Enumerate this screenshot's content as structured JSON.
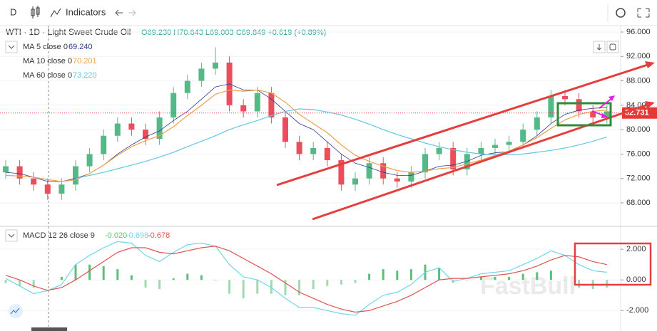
{
  "toolbar": {
    "interval": "D",
    "indicators": "Indicators"
  },
  "chart_data": [
    {
      "type": "candlestick",
      "title": "WTI · 1D · Light Sweet Crude Oil",
      "subtitle": "O69.230 H70.643 L69.003 C69.849 +0.619 (+0.89%)",
      "open": [
        73,
        74,
        72,
        71,
        69.5,
        71,
        74,
        76,
        79,
        81,
        80,
        78.5,
        82,
        86,
        88,
        90,
        91,
        84,
        83,
        86,
        82,
        78,
        76,
        77,
        75,
        71,
        72,
        74.5,
        72,
        71.5,
        73,
        76,
        77,
        73.5,
        76,
        77,
        77.5,
        78,
        80,
        82,
        85.5,
        85,
        83,
        82
      ],
      "high": [
        75,
        75,
        73,
        72,
        72,
        75,
        77,
        80,
        82,
        82,
        81,
        83,
        87,
        89,
        91,
        93.5,
        92,
        85,
        87,
        87,
        83,
        79,
        78,
        78,
        76,
        73,
        75.5,
        75.5,
        73,
        74,
        77,
        78,
        78,
        77,
        78,
        78.5,
        79,
        81,
        83,
        86.5,
        86.5,
        86,
        84,
        84
      ],
      "low": [
        72,
        71,
        70,
        68.5,
        68.5,
        70,
        73,
        75,
        78,
        79,
        77.5,
        77.5,
        81,
        85,
        87,
        89,
        83,
        82,
        82,
        81,
        77,
        75,
        75,
        74,
        70,
        70,
        71,
        71,
        70.5,
        70.5,
        72,
        75,
        72.5,
        72.5,
        75,
        76,
        76.5,
        77,
        79,
        81,
        84,
        82,
        81,
        81
      ],
      "close": [
        74,
        72,
        71,
        69.5,
        71,
        74,
        76,
        79,
        81,
        80,
        78.5,
        82,
        86,
        88,
        90,
        91,
        84,
        83,
        86,
        82,
        78,
        76,
        77,
        75,
        71,
        72,
        74.5,
        72,
        71.5,
        73,
        76,
        77,
        73.5,
        76,
        77,
        77.5,
        78,
        80,
        82,
        85.5,
        85,
        83,
        82,
        83
      ],
      "up_color": "#53b987",
      "down_color": "#eb4d5c",
      "series": [
        {
          "name": "MA 5 close 0",
          "legend_value": "69.240",
          "color": "#2b3a8f",
          "values": [
            73,
            72.8,
            72.2,
            71.5,
            71.5,
            72,
            72.8,
            74.2,
            76,
            77.5,
            78.8,
            79.8,
            81.5,
            83,
            85,
            87,
            87.5,
            86.5,
            86.5,
            85,
            83,
            81,
            80,
            78,
            76,
            74.5,
            73.8,
            73,
            72.5,
            72.5,
            73.2,
            74,
            74.2,
            74.8,
            75.8,
            76.2,
            76.4,
            77.5,
            79,
            81,
            82.5,
            83.2,
            83.5,
            83.6
          ]
        },
        {
          "name": "MA 10 close 0",
          "legend_value": "70.201",
          "color": "#f0a04b",
          "values": [
            72.5,
            72.4,
            72.2,
            71.8,
            71.5,
            71.8,
            72.8,
            74.2,
            75.8,
            77.2,
            78.2,
            79,
            80.5,
            82.3,
            84,
            85.8,
            86.5,
            86.3,
            86.5,
            86,
            84.5,
            82.5,
            81,
            79.5,
            77.5,
            75.8,
            74.8,
            74,
            73.3,
            73,
            73.2,
            73.6,
            73.8,
            74.4,
            75,
            75.8,
            76.5,
            77.5,
            78.7,
            80.2,
            81.6,
            82.5,
            83,
            83.2
          ]
        },
        {
          "name": "MA 60 close 0",
          "legend_value": "73.220",
          "color": "#5fc9e0",
          "values": [
            null,
            null,
            null,
            null,
            null,
            72,
            72.5,
            73,
            73.6,
            74.2,
            74.8,
            75.5,
            76.3,
            77.2,
            78.1,
            79,
            80,
            80.8,
            81.5,
            82.3,
            83,
            83.4,
            83.3,
            82.9,
            82.4,
            81.7,
            80.9,
            80,
            79.2,
            78.5,
            77.8,
            77.2,
            76.7,
            76.3,
            76,
            75.9,
            75.9,
            76,
            76.3,
            76.6,
            77,
            77.5,
            78.1,
            78.8
          ]
        }
      ],
      "last_price": {
        "value": 82.731,
        "label": "82.731",
        "color": "#e53935"
      },
      "ylim": [
        64.15,
        97.05
      ],
      "yticks": [
        {
          "value": 68,
          "label": "68.000"
        },
        {
          "value": 72,
          "label": "72.000"
        },
        {
          "value": 76,
          "label": "76.000"
        },
        {
          "value": 80,
          "label": "80.000"
        },
        {
          "value": 84,
          "label": "84.000"
        },
        {
          "value": 88,
          "label": "88.000"
        },
        {
          "value": 92,
          "label": "92.000"
        },
        {
          "value": 96,
          "label": "96.000"
        }
      ],
      "watermark": "FastBull"
    },
    {
      "type": "macd",
      "title": "MACD 12 26 close 9",
      "histogram": {
        "legend_value": "-0.020",
        "color": "#5cbf77",
        "values": [
          -0.2,
          -0.4,
          -0.5,
          -0.02,
          0.2,
          1.0,
          1.0,
          0.9,
          0.7,
          0.3,
          -0.5,
          -0.6,
          0.1,
          0.4,
          0.3,
          0.0,
          -0.9,
          -1.2,
          -0.9,
          -0.9,
          -1.0,
          -1.0,
          -0.6,
          -0.4,
          -0.3,
          -0.2,
          0.4,
          0.7,
          0.6,
          0.7,
          1.0,
          0.8,
          -0.2,
          0.0,
          0.2,
          0.2,
          0.2,
          0.4,
          0.5,
          0.6,
          0.0,
          -0.5,
          -0.6,
          -0.5
        ]
      },
      "macd": {
        "legend_value": "-0.698",
        "color": "#6fd6ec",
        "values": [
          0.1,
          -0.4,
          -0.9,
          -0.7,
          -0.3,
          1.0,
          1.6,
          2.1,
          2.5,
          2.4,
          1.6,
          1.2,
          1.8,
          2.3,
          2.4,
          2.2,
          1.0,
          0.2,
          0.0,
          -0.5,
          -1.2,
          -1.8,
          -1.8,
          -2.0,
          -2.2,
          -2.3,
          -1.6,
          -1.0,
          -0.8,
          -0.3,
          0.5,
          0.8,
          -0.1,
          0.1,
          0.4,
          0.5,
          0.6,
          1.0,
          1.4,
          1.9,
          1.6,
          1.0,
          0.6,
          0.5
        ]
      },
      "signal": {
        "legend_value": "-0.678",
        "color": "#e05252",
        "values": [
          0.3,
          0.0,
          -0.4,
          -0.68,
          -0.5,
          0.0,
          0.6,
          1.2,
          1.8,
          2.1,
          2.1,
          1.8,
          1.7,
          1.9,
          2.1,
          2.2,
          1.9,
          1.4,
          0.9,
          0.4,
          -0.2,
          -0.8,
          -1.2,
          -1.6,
          -1.9,
          -2.1,
          -2.0,
          -1.7,
          -1.4,
          -1.0,
          -0.5,
          0.0,
          0.1,
          0.1,
          0.2,
          0.3,
          0.4,
          0.6,
          0.9,
          1.3,
          1.6,
          1.5,
          1.2,
          1.0
        ]
      },
      "ylim": [
        -3.1,
        3.4
      ],
      "yticks": [
        {
          "value": -2,
          "label": "-2.000"
        },
        {
          "value": 0,
          "label": "0.000"
        },
        {
          "value": 2,
          "label": "2.000"
        }
      ]
    }
  ]
}
